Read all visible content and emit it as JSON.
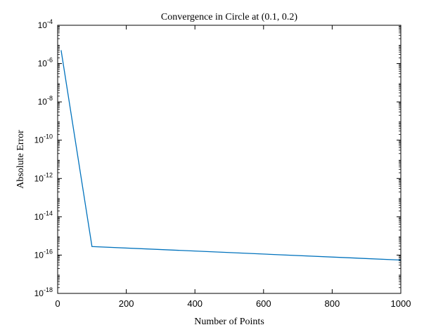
{
  "chart_data": {
    "type": "line",
    "title": "Convergence in Circle at (0.1, 0.2)",
    "xlabel": "Number of Points",
    "ylabel": "Absolute Error",
    "xlim": [
      0,
      1000
    ],
    "ylim": [
      1e-18,
      0.0001
    ],
    "yscale": "log",
    "grid": false,
    "x_ticks": [
      0,
      200,
      400,
      600,
      800,
      1000
    ],
    "x_tick_labels": [
      "0",
      "200",
      "400",
      "600",
      "800",
      "1000"
    ],
    "y_tick_exponents": [
      -4,
      -6,
      -8,
      -10,
      -12,
      -14,
      -16,
      -18
    ],
    "y_tick_base": "10",
    "series": [
      {
        "color": "#0072BD",
        "x": [
          10,
          100,
          1000
        ],
        "y": [
          5e-06,
          2.8e-16,
          5.5e-17
        ]
      }
    ]
  }
}
